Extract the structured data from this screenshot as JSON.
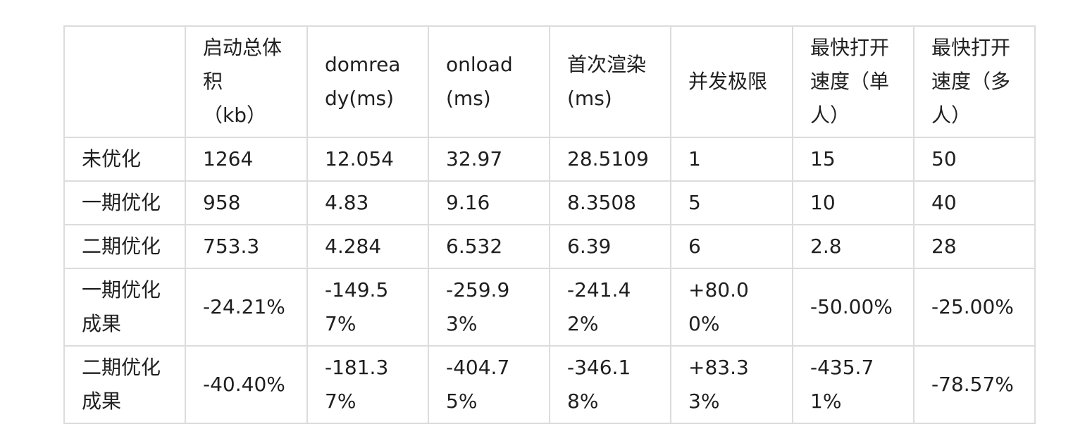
{
  "table": {
    "headers": [
      "",
      "启动总体积\n（kb）",
      "domready(ms)",
      "onload(ms)",
      "首次渲染(ms)",
      "并发极限",
      "最快打开速度（单人）",
      "最快打开速度（多人）"
    ],
    "rows": [
      [
        "未优化",
        "1264",
        "12.054",
        "32.97",
        "28.5109",
        "1",
        "15",
        "50"
      ],
      [
        "一期优化",
        "958",
        "4.83",
        "9.16",
        "8.3508",
        "5",
        "10",
        "40"
      ],
      [
        "二期优化",
        "753.3",
        "4.284",
        "6.532",
        "6.39",
        "6",
        "2.8",
        "28"
      ],
      [
        "一期优化成果",
        "-24.21%",
        "-149.57%",
        "-259.93%",
        "-241.42%",
        "+80.00%",
        "-50.00%",
        "-25.00%"
      ],
      [
        "二期优化成果",
        "-40.40%",
        "-181.37%",
        "-404.75%",
        "-346.18%",
        "+83.33%",
        "-435.71%",
        "-78.57%"
      ]
    ]
  }
}
